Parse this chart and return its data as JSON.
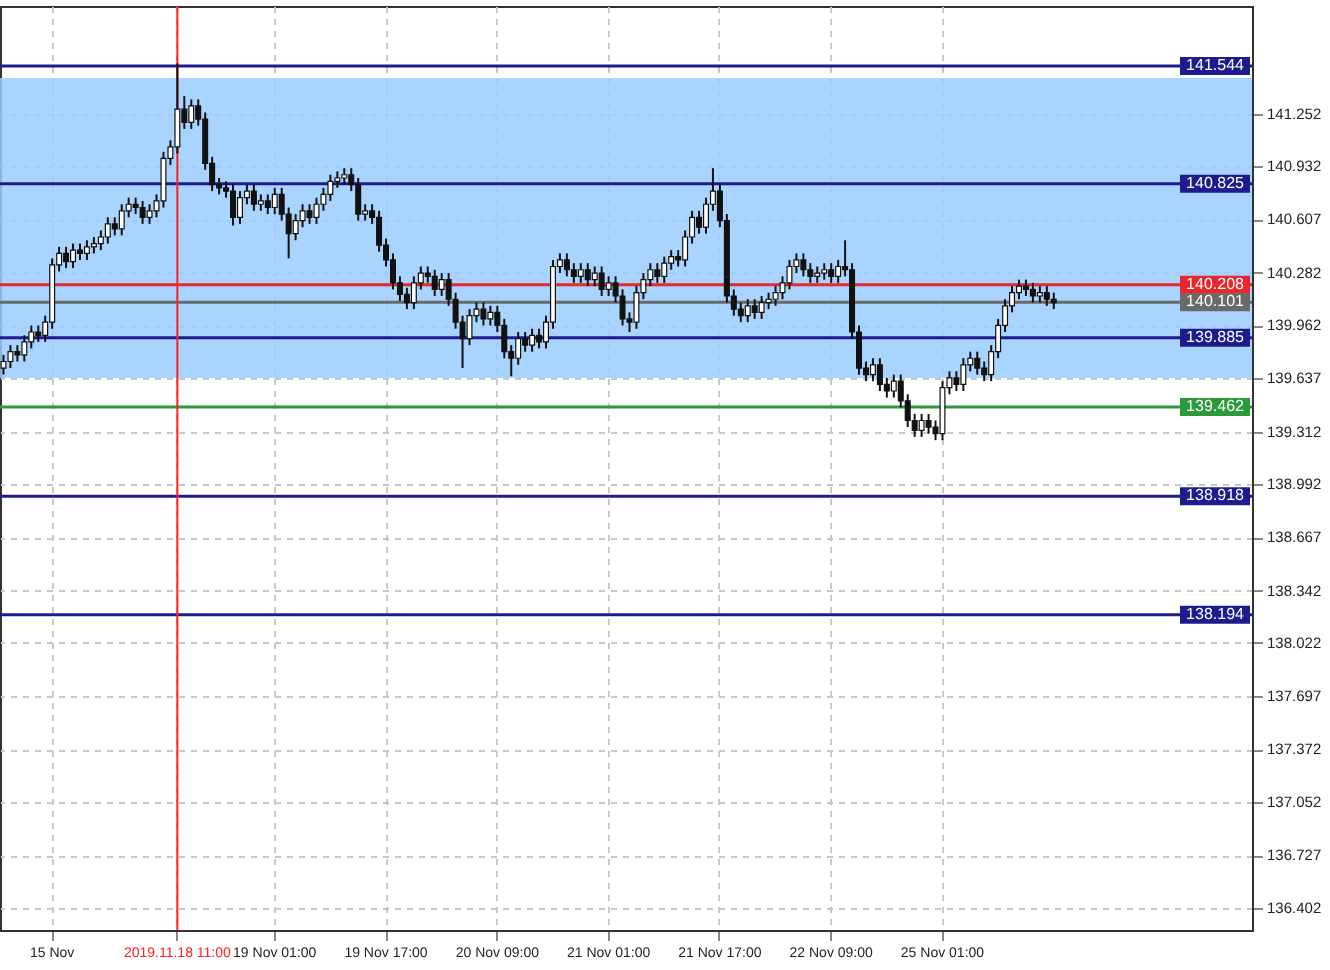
{
  "chart_data": {
    "type": "candlestick",
    "categories": [
      null,
      null,
      null,
      null,
      null,
      null,
      null,
      "15 Nov",
      null,
      null,
      null,
      null,
      null,
      null,
      null,
      null,
      null,
      null,
      null,
      null,
      null,
      null,
      null,
      null,
      null,
      "2019.11.18 11:00",
      null,
      null,
      null,
      null,
      null,
      null,
      null,
      null,
      null,
      null,
      null,
      null,
      null,
      "19 Nov 01:00",
      null,
      null,
      null,
      null,
      null,
      null,
      null,
      null,
      null,
      null,
      null,
      null,
      null,
      null,
      null,
      "19 Nov 17:00",
      null,
      null,
      null,
      null,
      null,
      null,
      null,
      null,
      null,
      null,
      null,
      null,
      null,
      null,
      null,
      "20 Nov 09:00",
      null,
      null,
      null,
      null,
      null,
      null,
      null,
      null,
      null,
      null,
      null,
      null,
      null,
      null,
      null,
      "21 Nov 01:00",
      null,
      null,
      null,
      null,
      null,
      null,
      null,
      null,
      null,
      null,
      null,
      null,
      null,
      null,
      null,
      "21 Nov 17:00",
      null,
      null,
      null,
      null,
      null,
      null,
      null,
      null,
      null,
      null,
      null,
      null,
      null,
      null,
      null,
      "22 Nov 09:00",
      null,
      null,
      null,
      null,
      null,
      null,
      null,
      null,
      null,
      null,
      null,
      null,
      null,
      null,
      null,
      "25 Nov 01:00",
      null,
      null,
      null,
      null,
      null,
      null,
      null,
      null,
      null,
      null,
      null,
      null,
      null,
      null,
      null,
      null,
      null,
      null,
      null,
      null,
      null,
      null,
      null,
      null,
      null,
      null,
      null,
      null,
      null,
      null,
      null,
      null,
      null,
      null,
      null,
      null,
      null,
      null,
      null,
      null,
      null,
      null,
      null,
      null
    ],
    "ohlc": [
      [
        139.7,
        139.78,
        139.66,
        139.74
      ],
      [
        139.74,
        139.84,
        139.7,
        139.8
      ],
      [
        139.8,
        139.84,
        139.74,
        139.78
      ],
      [
        139.78,
        139.9,
        139.74,
        139.86
      ],
      [
        139.86,
        139.96,
        139.82,
        139.92
      ],
      [
        139.92,
        139.96,
        139.86,
        139.9
      ],
      [
        139.9,
        140.02,
        139.86,
        139.98
      ],
      [
        139.98,
        140.37,
        139.94,
        140.33
      ],
      [
        140.33,
        140.44,
        140.29,
        140.4
      ],
      [
        140.4,
        140.44,
        140.31,
        140.35
      ],
      [
        140.35,
        140.46,
        140.31,
        140.42
      ],
      [
        140.42,
        140.46,
        140.36,
        140.4
      ],
      [
        140.4,
        140.48,
        140.36,
        140.44
      ],
      [
        140.44,
        140.5,
        140.4,
        140.46
      ],
      [
        140.46,
        140.54,
        140.42,
        140.5
      ],
      [
        140.5,
        140.62,
        140.46,
        140.58
      ],
      [
        140.58,
        140.62,
        140.51,
        140.55
      ],
      [
        140.55,
        140.7,
        140.51,
        140.66
      ],
      [
        140.66,
        140.74,
        140.62,
        140.7
      ],
      [
        140.7,
        140.74,
        140.64,
        140.68
      ],
      [
        140.68,
        140.72,
        140.58,
        140.62
      ],
      [
        140.62,
        140.7,
        140.58,
        140.66
      ],
      [
        140.66,
        140.76,
        140.62,
        140.72
      ],
      [
        140.72,
        141.02,
        140.68,
        140.98
      ],
      [
        140.98,
        141.09,
        140.94,
        141.05
      ],
      [
        141.05,
        141.56,
        141.01,
        141.28
      ],
      [
        141.28,
        141.36,
        141.16,
        141.2
      ],
      [
        141.2,
        141.34,
        141.16,
        141.3
      ],
      [
        141.3,
        141.34,
        141.18,
        141.22
      ],
      [
        141.22,
        141.26,
        140.91,
        140.95
      ],
      [
        140.95,
        140.99,
        140.78,
        140.82
      ],
      [
        140.82,
        140.86,
        140.76,
        140.8
      ],
      [
        140.8,
        140.84,
        140.74,
        140.78
      ],
      [
        140.78,
        140.82,
        140.57,
        140.62
      ],
      [
        140.62,
        140.78,
        140.58,
        140.74
      ],
      [
        140.74,
        140.82,
        140.7,
        140.78
      ],
      [
        140.78,
        140.82,
        140.66,
        140.7
      ],
      [
        140.7,
        140.76,
        140.66,
        140.72
      ],
      [
        140.72,
        140.76,
        140.64,
        140.68
      ],
      [
        140.68,
        140.8,
        140.64,
        140.76
      ],
      [
        140.76,
        140.8,
        140.6,
        140.64
      ],
      [
        140.64,
        140.68,
        140.37,
        140.52
      ],
      [
        140.52,
        140.64,
        140.48,
        140.6
      ],
      [
        140.6,
        140.7,
        140.56,
        140.66
      ],
      [
        140.66,
        140.7,
        140.58,
        140.62
      ],
      [
        140.62,
        140.74,
        140.58,
        140.7
      ],
      [
        140.7,
        140.8,
        140.66,
        140.76
      ],
      [
        140.76,
        140.88,
        140.72,
        140.84
      ],
      [
        140.84,
        140.9,
        140.8,
        140.86
      ],
      [
        140.86,
        140.92,
        140.82,
        140.88
      ],
      [
        140.88,
        140.92,
        140.78,
        140.82
      ],
      [
        140.82,
        140.86,
        140.6,
        140.64
      ],
      [
        140.64,
        140.7,
        140.6,
        140.66
      ],
      [
        140.66,
        140.7,
        140.58,
        140.62
      ],
      [
        140.62,
        140.66,
        140.41,
        140.45
      ],
      [
        140.45,
        140.49,
        140.32,
        140.36
      ],
      [
        140.36,
        140.4,
        140.18,
        140.22
      ],
      [
        140.22,
        140.26,
        140.11,
        140.15
      ],
      [
        140.15,
        140.19,
        140.06,
        140.1
      ],
      [
        140.1,
        140.26,
        140.06,
        140.22
      ],
      [
        140.22,
        140.32,
        140.18,
        140.28
      ],
      [
        140.28,
        140.32,
        140.22,
        140.26
      ],
      [
        140.26,
        140.3,
        140.14,
        140.18
      ],
      [
        140.18,
        140.28,
        140.14,
        140.24
      ],
      [
        140.24,
        140.28,
        140.08,
        140.12
      ],
      [
        140.12,
        140.16,
        139.94,
        139.98
      ],
      [
        139.98,
        140.02,
        139.7,
        139.88
      ],
      [
        139.88,
        140.06,
        139.84,
        140.02
      ],
      [
        140.02,
        140.1,
        139.98,
        140.06
      ],
      [
        140.06,
        140.1,
        139.96,
        140.0
      ],
      [
        140.0,
        140.08,
        139.96,
        140.04
      ],
      [
        140.04,
        140.08,
        139.92,
        139.96
      ],
      [
        139.96,
        140.0,
        139.76,
        139.8
      ],
      [
        139.8,
        139.84,
        139.65,
        139.76
      ],
      [
        139.76,
        139.92,
        139.72,
        139.88
      ],
      [
        139.88,
        139.92,
        139.8,
        139.84
      ],
      [
        139.84,
        139.94,
        139.8,
        139.9
      ],
      [
        139.9,
        139.94,
        139.82,
        139.86
      ],
      [
        139.86,
        140.02,
        139.82,
        139.98
      ],
      [
        139.98,
        140.36,
        139.94,
        140.32
      ],
      [
        140.32,
        140.4,
        140.28,
        140.36
      ],
      [
        140.36,
        140.4,
        140.26,
        140.3
      ],
      [
        140.3,
        140.34,
        140.22,
        140.26
      ],
      [
        140.26,
        140.34,
        140.22,
        140.3
      ],
      [
        140.3,
        140.34,
        140.2,
        140.24
      ],
      [
        140.24,
        140.32,
        140.2,
        140.28
      ],
      [
        140.28,
        140.32,
        140.14,
        140.18
      ],
      [
        140.18,
        140.26,
        140.14,
        140.22
      ],
      [
        140.22,
        140.26,
        140.1,
        140.14
      ],
      [
        140.14,
        140.18,
        139.96,
        140.0
      ],
      [
        140.0,
        140.04,
        139.92,
        139.98
      ],
      [
        139.98,
        140.2,
        139.94,
        140.16
      ],
      [
        140.16,
        140.28,
        140.12,
        140.24
      ],
      [
        140.24,
        140.34,
        140.2,
        140.3
      ],
      [
        140.3,
        140.34,
        140.22,
        140.26
      ],
      [
        140.26,
        140.38,
        140.22,
        140.34
      ],
      [
        140.34,
        140.42,
        140.3,
        140.38
      ],
      [
        140.38,
        140.42,
        140.32,
        140.36
      ],
      [
        140.36,
        140.54,
        140.32,
        140.5
      ],
      [
        140.5,
        140.66,
        140.46,
        140.62
      ],
      [
        140.62,
        140.66,
        140.52,
        140.56
      ],
      [
        140.56,
        140.74,
        140.52,
        140.7
      ],
      [
        140.7,
        140.92,
        140.66,
        140.78
      ],
      [
        140.78,
        140.82,
        140.56,
        140.6
      ],
      [
        140.6,
        140.64,
        140.1,
        140.14
      ],
      [
        140.14,
        140.18,
        140.02,
        140.06
      ],
      [
        140.06,
        140.1,
        139.98,
        140.02
      ],
      [
        140.02,
        140.12,
        139.98,
        140.08
      ],
      [
        140.08,
        140.12,
        140.0,
        140.04
      ],
      [
        140.04,
        140.14,
        140.0,
        140.1
      ],
      [
        140.1,
        140.16,
        140.06,
        140.12
      ],
      [
        140.12,
        140.2,
        140.08,
        140.16
      ],
      [
        140.16,
        140.26,
        140.12,
        140.22
      ],
      [
        140.22,
        140.36,
        140.18,
        140.32
      ],
      [
        140.32,
        140.4,
        140.28,
        140.36
      ],
      [
        140.36,
        140.4,
        140.26,
        140.3
      ],
      [
        140.3,
        140.34,
        140.22,
        140.26
      ],
      [
        140.26,
        140.32,
        140.22,
        140.28
      ],
      [
        140.28,
        140.34,
        140.24,
        140.3
      ],
      [
        140.3,
        140.34,
        140.22,
        140.26
      ],
      [
        140.26,
        140.36,
        140.22,
        140.32
      ],
      [
        140.32,
        140.48,
        140.26,
        140.3
      ],
      [
        140.3,
        140.34,
        139.88,
        139.92
      ],
      [
        139.92,
        139.96,
        139.66,
        139.7
      ],
      [
        139.7,
        139.74,
        139.62,
        139.66
      ],
      [
        139.66,
        139.76,
        139.62,
        139.72
      ],
      [
        139.72,
        139.76,
        139.56,
        139.6
      ],
      [
        139.6,
        139.64,
        139.52,
        139.56
      ],
      [
        139.56,
        139.66,
        139.52,
        139.62
      ],
      [
        139.62,
        139.66,
        139.46,
        139.5
      ],
      [
        139.5,
        139.54,
        139.34,
        139.38
      ],
      [
        139.38,
        139.42,
        139.28,
        139.32
      ],
      [
        139.32,
        139.42,
        139.28,
        139.38
      ],
      [
        139.38,
        139.42,
        139.3,
        139.34
      ],
      [
        139.34,
        139.38,
        139.26,
        139.3
      ],
      [
        139.3,
        139.62,
        139.26,
        139.58
      ],
      [
        139.58,
        139.68,
        139.54,
        139.64
      ],
      [
        139.64,
        139.68,
        139.56,
        139.6
      ],
      [
        139.6,
        139.76,
        139.56,
        139.72
      ],
      [
        139.72,
        139.8,
        139.68,
        139.76
      ],
      [
        139.76,
        139.8,
        139.66,
        139.7
      ],
      [
        139.7,
        139.74,
        139.62,
        139.66
      ],
      [
        139.66,
        139.84,
        139.62,
        139.8
      ],
      [
        139.8,
        140.0,
        139.76,
        139.96
      ],
      [
        139.96,
        140.12,
        139.92,
        140.08
      ],
      [
        140.08,
        140.2,
        140.04,
        140.16
      ],
      [
        140.16,
        140.24,
        140.12,
        140.2
      ],
      [
        140.2,
        140.24,
        140.14,
        140.18
      ],
      [
        140.18,
        140.22,
        140.1,
        140.14
      ],
      [
        140.14,
        140.2,
        140.1,
        140.16
      ],
      [
        140.16,
        140.2,
        140.08,
        140.12
      ],
      [
        140.12,
        140.16,
        140.06,
        140.1
      ],
      null,
      null,
      null,
      null,
      null,
      null,
      null,
      null,
      null,
      null,
      null,
      null,
      null,
      null,
      null,
      null,
      null,
      null,
      null,
      null,
      null,
      null,
      null,
      null,
      null,
      null,
      null,
      null
    ],
    "ylim": [
      136.27,
      141.91
    ],
    "yticks": [
      141.252,
      140.932,
      140.607,
      140.282,
      139.962,
      139.637,
      139.312,
      138.992,
      138.667,
      138.342,
      138.022,
      137.697,
      137.372,
      137.052,
      136.727,
      136.402
    ],
    "ref_lines": [
      {
        "axis": "y",
        "value": 141.544,
        "label": "141.544",
        "color": "#1c1c8f"
      },
      {
        "axis": "y",
        "value": 140.825,
        "label": "140.825",
        "color": "#1c1c8f"
      },
      {
        "axis": "y",
        "value": 140.208,
        "label": "140.208",
        "color": "#e8262b"
      },
      {
        "axis": "y",
        "value": 140.101,
        "label": "140.101",
        "color": "#6a6a6a"
      },
      {
        "axis": "y",
        "value": 139.885,
        "label": "139.885",
        "color": "#1c1c8f"
      },
      {
        "axis": "y",
        "value": 139.462,
        "label": "139.462",
        "color": "#2a9a3a"
      },
      {
        "axis": "y",
        "value": 138.918,
        "label": "138.918",
        "color": "#1c1c8f"
      },
      {
        "axis": "y",
        "value": 138.194,
        "label": "138.194",
        "color": "#1c1c8f"
      },
      {
        "axis": "x",
        "value": "2019.11.18 11:00",
        "color": "#ff2020"
      }
    ],
    "bands": [
      {
        "axis": "y",
        "from": 139.64,
        "to": 141.47,
        "color": "#99ccff"
      }
    ],
    "grid": true
  }
}
